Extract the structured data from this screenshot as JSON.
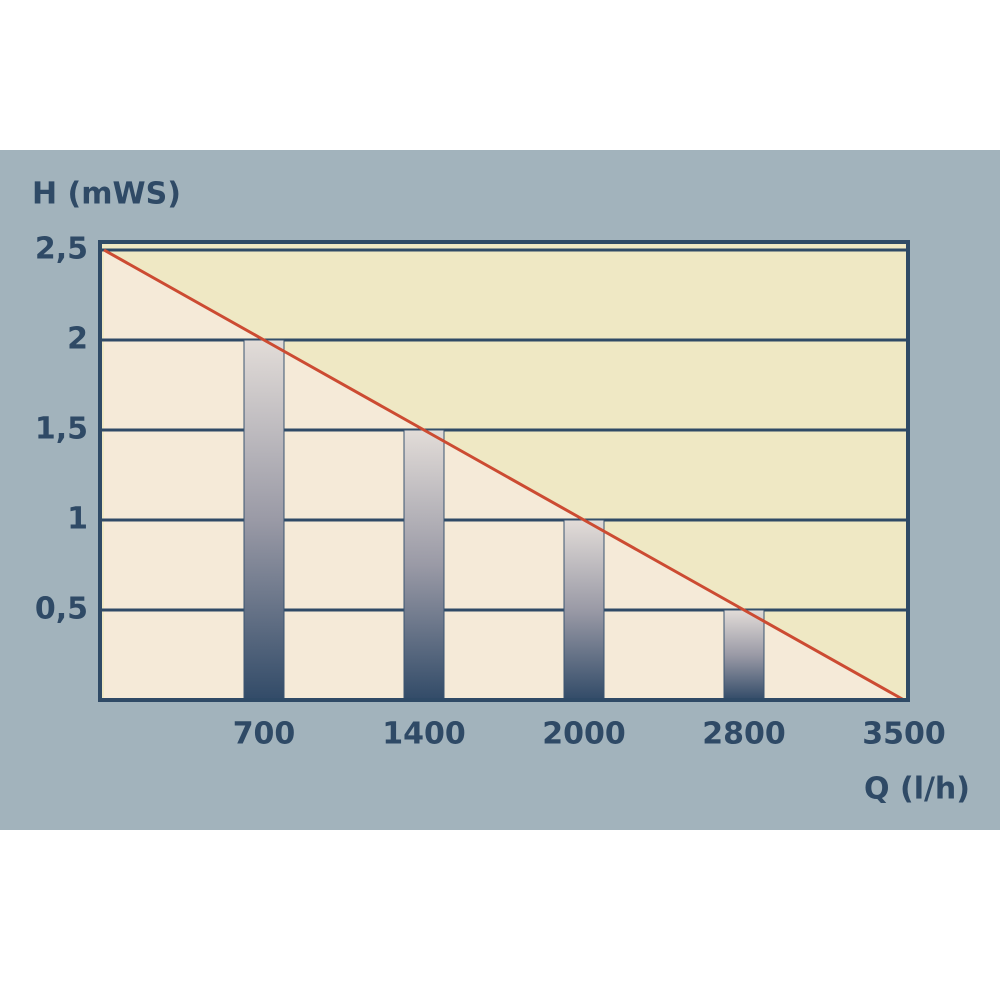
{
  "chart_data": {
    "type": "bar",
    "y_label": "H (mWS)",
    "x_label": "Q (l/h)",
    "categories": [
      null,
      "700",
      "1400",
      "2000",
      "2800",
      "3500"
    ],
    "series": [
      {
        "type": "bar",
        "values": [
          null,
          2,
          1.5,
          1,
          0.5,
          null
        ]
      },
      {
        "type": "line",
        "color": "#cc4b32",
        "values": [
          2.5,
          2,
          1.5,
          1,
          0.5,
          0
        ]
      }
    ],
    "ylim": [
      0,
      2.5
    ],
    "yticks": [
      {
        "value": 0.5,
        "label": "0,5"
      },
      1,
      {
        "value": 1.5,
        "label": "1,5"
      },
      2,
      {
        "value": 2.5,
        "label": "2,5"
      }
    ],
    "grid": true
  }
}
